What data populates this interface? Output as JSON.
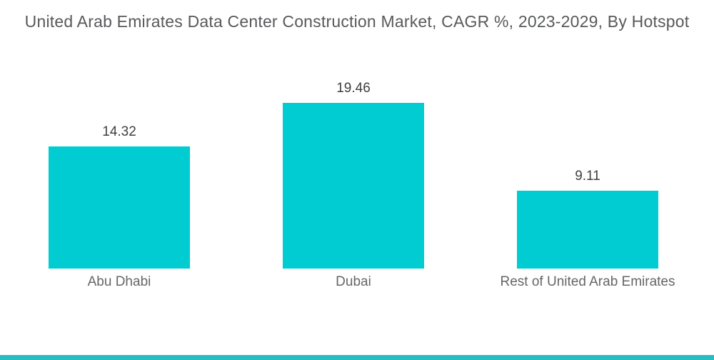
{
  "title": "United Arab Emirates Data Center Construction Market, CAGR %, 2023-2029, By Hotspot",
  "chart_data": {
    "type": "bar",
    "title": "United Arab Emirates Data Center Construction Market, CAGR %, 2023-2029, By Hotspot",
    "categories": [
      "Abu Dhabi",
      "Dubai",
      "Rest of United Arab Emirates"
    ],
    "values": [
      14.32,
      19.46,
      9.11
    ],
    "value_labels": [
      "14.32",
      "19.46",
      "9.11"
    ],
    "xlabel": "",
    "ylabel": "",
    "unit": "CAGR %",
    "legend": false,
    "grid": false,
    "axes_visible": false,
    "value_label_position": "above-bar",
    "bar_color": "#00CCD2",
    "title_color": "#58595B",
    "value_label_color": "#3F3F3F",
    "category_label_color": "#666666",
    "accent_strip_color": "#29BCC1",
    "background_color": "#FFFFFF"
  }
}
